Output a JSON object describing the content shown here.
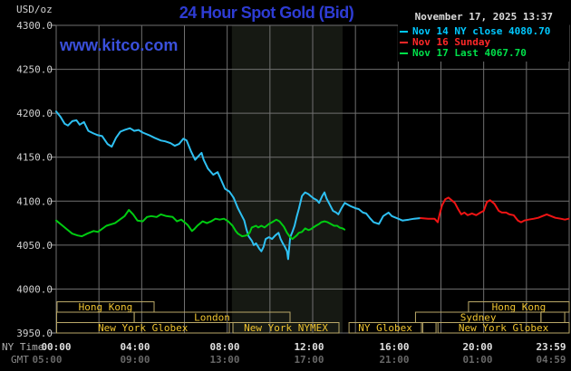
{
  "header": {
    "units": "USD/oz",
    "title": "24 Hour Spot Gold (Bid)",
    "datetime": "November 17, 2025 13:37"
  },
  "watermark": "www.kitco.com",
  "legend": {
    "items": [
      {
        "label": "Nov 14 NY close 4080.70",
        "color": "#00c8ff"
      },
      {
        "label": "Nov 16 Sunday",
        "color": "#ff2828"
      },
      {
        "label": "Nov 17 Last 4067.70",
        "color": "#00e04a"
      }
    ]
  },
  "axes": {
    "ny_label": "NY Time",
    "gmt_label": "GMT",
    "y_ticks": [
      "4300.0",
      "4250.0",
      "4200.0",
      "4150.0",
      "4100.0",
      "4050.0",
      "4000.0",
      "3950.0"
    ],
    "ny_ticks": [
      "00:00",
      "04:00",
      "08:00",
      "12:00",
      "16:00",
      "20:00",
      "23:59"
    ],
    "gmt_ticks": [
      "05:00",
      "09:00",
      "13:00",
      "17:00",
      "21:00",
      "01:00",
      "04:59"
    ]
  },
  "chart_data": {
    "type": "line",
    "title": "24 Hour Spot Gold (Bid)",
    "xlabel": "NY Time (hours)",
    "ylabel": "USD/oz",
    "x_range": [
      0,
      24
    ],
    "y_range": [
      3950,
      4300
    ],
    "grid_x_step_hours": 2,
    "grid_y_step": 50,
    "highlight_band_hours": [
      8.22,
      13.4
    ],
    "colors": {
      "band": "#161913",
      "grid": "#707070",
      "border": "#707070",
      "tick": "#9a9a9a",
      "session_border": "#baa868",
      "session_text": "#f0c430",
      "ny_tick_text": "#e0e0e0",
      "gmt_tick_text": "#686868",
      "y_tick_text": "#cfcfcf"
    },
    "series": [
      {
        "id": "nov14",
        "name": "Nov 14 NY close 4080.70",
        "color": "#2ec0f2",
        "points": [
          [
            0,
            4202
          ],
          [
            0.2,
            4196
          ],
          [
            0.4,
            4188
          ],
          [
            0.55,
            4186
          ],
          [
            0.75,
            4191
          ],
          [
            0.95,
            4192
          ],
          [
            1.1,
            4187
          ],
          [
            1.3,
            4190
          ],
          [
            1.5,
            4180
          ],
          [
            1.75,
            4177
          ],
          [
            1.95,
            4175
          ],
          [
            2.15,
            4174
          ],
          [
            2.4,
            4165
          ],
          [
            2.6,
            4162
          ],
          [
            2.8,
            4172
          ],
          [
            3.0,
            4179
          ],
          [
            3.2,
            4181
          ],
          [
            3.45,
            4183
          ],
          [
            3.65,
            4180
          ],
          [
            3.85,
            4181
          ],
          [
            4.05,
            4178
          ],
          [
            4.35,
            4175
          ],
          [
            4.6,
            4172
          ],
          [
            4.9,
            4169
          ],
          [
            5.1,
            4168
          ],
          [
            5.35,
            4166
          ],
          [
            5.55,
            4163
          ],
          [
            5.75,
            4165
          ],
          [
            5.95,
            4171
          ],
          [
            6.1,
            4169
          ],
          [
            6.3,
            4157
          ],
          [
            6.5,
            4147
          ],
          [
            6.65,
            4151
          ],
          [
            6.8,
            4155
          ],
          [
            6.9,
            4147
          ],
          [
            7.1,
            4137
          ],
          [
            7.35,
            4130
          ],
          [
            7.55,
            4133
          ],
          [
            7.7,
            4125
          ],
          [
            7.9,
            4114
          ],
          [
            8.1,
            4111
          ],
          [
            8.3,
            4104
          ],
          [
            8.5,
            4092
          ],
          [
            8.65,
            4085
          ],
          [
            8.8,
            4078
          ],
          [
            8.9,
            4068
          ],
          [
            9.0,
            4060
          ],
          [
            9.15,
            4055
          ],
          [
            9.25,
            4050
          ],
          [
            9.35,
            4052
          ],
          [
            9.5,
            4046
          ],
          [
            9.6,
            4043
          ],
          [
            9.7,
            4048
          ],
          [
            9.8,
            4057
          ],
          [
            9.95,
            4059
          ],
          [
            10.1,
            4057
          ],
          [
            10.25,
            4061
          ],
          [
            10.4,
            4064
          ],
          [
            10.5,
            4057
          ],
          [
            10.6,
            4052
          ],
          [
            10.7,
            4048
          ],
          [
            10.8,
            4043
          ],
          [
            10.85,
            4034
          ],
          [
            10.95,
            4059
          ],
          [
            11.05,
            4065
          ],
          [
            11.15,
            4072
          ],
          [
            11.25,
            4082
          ],
          [
            11.35,
            4091
          ],
          [
            11.5,
            4106
          ],
          [
            11.65,
            4110
          ],
          [
            11.8,
            4108
          ],
          [
            11.9,
            4106
          ],
          [
            12.05,
            4103
          ],
          [
            12.2,
            4101
          ],
          [
            12.3,
            4098
          ],
          [
            12.45,
            4106
          ],
          [
            12.55,
            4110
          ],
          [
            12.65,
            4103
          ],
          [
            12.8,
            4096
          ],
          [
            12.95,
            4089
          ],
          [
            13.1,
            4087
          ],
          [
            13.2,
            4085
          ],
          [
            13.35,
            4092
          ],
          [
            13.5,
            4098
          ],
          [
            13.65,
            4096
          ],
          [
            13.8,
            4094
          ],
          [
            14.0,
            4092
          ],
          [
            14.15,
            4091
          ],
          [
            14.35,
            4087
          ],
          [
            14.5,
            4086
          ],
          [
            14.7,
            4080
          ],
          [
            14.85,
            4076
          ],
          [
            15.1,
            4074
          ],
          [
            15.3,
            4083
          ],
          [
            15.55,
            4087
          ],
          [
            15.7,
            4083
          ],
          [
            16.0,
            4080
          ],
          [
            16.2,
            4078
          ],
          [
            16.5,
            4079
          ],
          [
            16.75,
            4080
          ],
          [
            17.05,
            4080.7
          ]
        ]
      },
      {
        "id": "nov16",
        "name": "Nov 16 Sunday",
        "color": "#f01414",
        "points": [
          [
            17.05,
            4080.7
          ],
          [
            17.4,
            4080
          ],
          [
            17.7,
            4080
          ],
          [
            17.85,
            4076
          ],
          [
            17.95,
            4086
          ],
          [
            18.05,
            4095
          ],
          [
            18.2,
            4102
          ],
          [
            18.35,
            4104
          ],
          [
            18.5,
            4101
          ],
          [
            18.65,
            4098
          ],
          [
            18.8,
            4091
          ],
          [
            18.95,
            4085
          ],
          [
            19.1,
            4087
          ],
          [
            19.25,
            4084
          ],
          [
            19.45,
            4086
          ],
          [
            19.65,
            4084
          ],
          [
            19.85,
            4087
          ],
          [
            20.0,
            4089
          ],
          [
            20.15,
            4099
          ],
          [
            20.3,
            4101
          ],
          [
            20.5,
            4097
          ],
          [
            20.7,
            4089
          ],
          [
            20.85,
            4087
          ],
          [
            21.05,
            4087
          ],
          [
            21.2,
            4085
          ],
          [
            21.4,
            4084
          ],
          [
            21.6,
            4078
          ],
          [
            21.75,
            4076
          ],
          [
            21.9,
            4078
          ],
          [
            22.1,
            4079
          ],
          [
            22.35,
            4080
          ],
          [
            22.55,
            4081
          ],
          [
            22.75,
            4083
          ],
          [
            22.95,
            4085
          ],
          [
            23.15,
            4083
          ],
          [
            23.35,
            4081
          ],
          [
            23.6,
            4080
          ],
          [
            23.8,
            4079
          ],
          [
            23.98,
            4080
          ]
        ]
      },
      {
        "id": "nov17",
        "name": "Nov 17 Last 4067.70",
        "color": "#00cc11",
        "points": [
          [
            0,
            4078
          ],
          [
            0.25,
            4073
          ],
          [
            0.5,
            4068
          ],
          [
            0.75,
            4063
          ],
          [
            1.0,
            4061
          ],
          [
            1.2,
            4060
          ],
          [
            1.45,
            4063
          ],
          [
            1.75,
            4066
          ],
          [
            1.95,
            4065
          ],
          [
            2.35,
            4072
          ],
          [
            2.75,
            4075
          ],
          [
            3.2,
            4083
          ],
          [
            3.4,
            4090
          ],
          [
            3.6,
            4085
          ],
          [
            3.8,
            4078
          ],
          [
            4.05,
            4077
          ],
          [
            4.25,
            4082
          ],
          [
            4.45,
            4083
          ],
          [
            4.7,
            4082
          ],
          [
            4.9,
            4085
          ],
          [
            5.15,
            4083
          ],
          [
            5.45,
            4082
          ],
          [
            5.65,
            4077
          ],
          [
            5.85,
            4079
          ],
          [
            6.15,
            4073
          ],
          [
            6.35,
            4066
          ],
          [
            6.45,
            4068
          ],
          [
            6.6,
            4072
          ],
          [
            6.85,
            4077
          ],
          [
            7.05,
            4075
          ],
          [
            7.25,
            4077
          ],
          [
            7.45,
            4080
          ],
          [
            7.65,
            4079
          ],
          [
            7.85,
            4080
          ],
          [
            8.05,
            4077
          ],
          [
            8.25,
            4072
          ],
          [
            8.4,
            4066
          ],
          [
            8.5,
            4063
          ],
          [
            8.7,
            4060
          ],
          [
            8.9,
            4061
          ],
          [
            9.05,
            4064
          ],
          [
            9.15,
            4070
          ],
          [
            9.35,
            4072
          ],
          [
            9.45,
            4070
          ],
          [
            9.6,
            4072
          ],
          [
            9.75,
            4070
          ],
          [
            9.95,
            4074
          ],
          [
            10.1,
            4076
          ],
          [
            10.3,
            4079
          ],
          [
            10.45,
            4077
          ],
          [
            10.65,
            4071
          ],
          [
            10.8,
            4064
          ],
          [
            10.95,
            4059
          ],
          [
            11.05,
            4057
          ],
          [
            11.25,
            4061
          ],
          [
            11.35,
            4064
          ],
          [
            11.5,
            4065
          ],
          [
            11.65,
            4069
          ],
          [
            11.8,
            4067
          ],
          [
            11.9,
            4068
          ],
          [
            12.15,
            4072
          ],
          [
            12.3,
            4074
          ],
          [
            12.4,
            4076
          ],
          [
            12.55,
            4077
          ],
          [
            12.7,
            4076
          ],
          [
            12.85,
            4074
          ],
          [
            13.0,
            4072
          ],
          [
            13.15,
            4072
          ],
          [
            13.25,
            4070
          ],
          [
            13.4,
            4069
          ],
          [
            13.49,
            4067.7
          ]
        ]
      }
    ],
    "sessions": {
      "rows": [
        {
          "boxes": [
            {
              "t0": 0.04,
              "t1": 4.58,
              "label": "Hong Kong"
            },
            {
              "t0": 19.29,
              "t1": 24.0,
              "label": "Hong Kong"
            }
          ]
        },
        {
          "boxes": [
            {
              "t0": 0.02,
              "t1": 3.65,
              "label": ""
            },
            {
              "t0": 3.65,
              "t1": 10.94,
              "label": "London"
            },
            {
              "t0": 16.81,
              "t1": 22.68,
              "label": "Sydney"
            },
            {
              "t0": 22.68,
              "t1": 23.79,
              "label": ""
            }
          ]
        },
        {
          "boxes": [
            {
              "t0": 0.02,
              "t1": 8.1,
              "label": "New York Globex"
            },
            {
              "t0": 8.27,
              "t1": 13.23,
              "label": "New York NYMEX"
            },
            {
              "t0": 13.7,
              "t1": 17.09,
              "label": "NY Globex"
            },
            {
              "t0": 17.15,
              "t1": 17.77,
              "label": ""
            },
            {
              "t0": 17.86,
              "t1": 24.0,
              "label": "New York Globex"
            }
          ]
        }
      ]
    }
  }
}
